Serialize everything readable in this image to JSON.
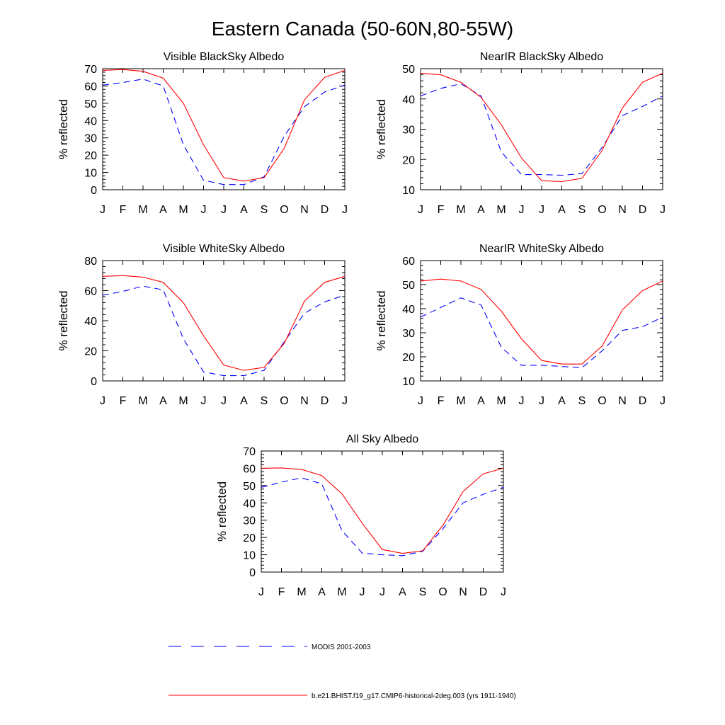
{
  "figure_title": "Eastern Canada (50-60N,80-55W)",
  "legend": {
    "placement": "bottom",
    "entries": [
      {
        "label": "MODIS 2001-2003",
        "color": "#0000ff",
        "style": "dashed"
      },
      {
        "label": "b.e21.BHIST.f19_g17.CMIP6-historical-2deg.003 (yrs 1911-1940)",
        "color": "#ff0000",
        "style": "solid"
      }
    ]
  },
  "chart_data": [
    {
      "type": "line",
      "title": "Visible BlackSky Albedo",
      "xlabel": "",
      "ylabel": "% reflected",
      "categories": [
        "J",
        "F",
        "M",
        "A",
        "M",
        "J",
        "J",
        "A",
        "S",
        "O",
        "N",
        "D",
        "J"
      ],
      "ylim": [
        0,
        70
      ],
      "yticks": [
        0,
        10,
        20,
        30,
        40,
        50,
        60,
        70
      ],
      "grid": false,
      "series": [
        {
          "name": "MODIS 2001-2003",
          "color": "#0000ff",
          "dash": true,
          "values": [
            60.5,
            62,
            64,
            60,
            26,
            5.5,
            3,
            3,
            7.5,
            31,
            48,
            56.5,
            60.5
          ]
        },
        {
          "name": "b.e21.BHIST.f19_g17.CMIP6-historical-2deg.003 (yrs 1911-1940)",
          "color": "#ff0000",
          "dash": false,
          "values": [
            69,
            69.5,
            68.5,
            64.5,
            50,
            26,
            7,
            5,
            7,
            24,
            52,
            65,
            69
          ]
        }
      ]
    },
    {
      "type": "line",
      "title": "NearIR BlackSky Albedo",
      "xlabel": "",
      "ylabel": "% reflected",
      "categories": [
        "J",
        "F",
        "M",
        "A",
        "M",
        "J",
        "J",
        "A",
        "S",
        "O",
        "N",
        "D",
        "J"
      ],
      "ylim": [
        10,
        50
      ],
      "yticks": [
        10,
        20,
        30,
        40,
        50
      ],
      "grid": false,
      "series": [
        {
          "name": "MODIS 2001-2003",
          "color": "#0000ff",
          "dash": true,
          "values": [
            41,
            43.5,
            45,
            41,
            22.5,
            15,
            15,
            14.8,
            15.3,
            24,
            34.5,
            37.5,
            41
          ]
        },
        {
          "name": "b.e21.BHIST.f19_g17.CMIP6-historical-2deg.003 (yrs 1911-1940)",
          "color": "#ff0000",
          "dash": false,
          "values": [
            48.5,
            48,
            45.5,
            40.5,
            31.5,
            20.5,
            13,
            12.7,
            13.8,
            23,
            37,
            45.5,
            48.5
          ]
        }
      ]
    },
    {
      "type": "line",
      "title": "Visible WhiteSky Albedo",
      "xlabel": "",
      "ylabel": "% reflected",
      "categories": [
        "J",
        "F",
        "M",
        "A",
        "M",
        "J",
        "J",
        "A",
        "S",
        "O",
        "N",
        "D",
        "J"
      ],
      "ylim": [
        0,
        80
      ],
      "yticks": [
        0,
        20,
        40,
        60,
        80
      ],
      "grid": false,
      "series": [
        {
          "name": "MODIS 2001-2003",
          "color": "#0000ff",
          "dash": true,
          "values": [
            57,
            59.5,
            63,
            60.5,
            28,
            6,
            3.5,
            3.5,
            7,
            26,
            45,
            52.5,
            57
          ]
        },
        {
          "name": "b.e21.BHIST.f19_g17.CMIP6-historical-2deg.003 (yrs 1911-1940)",
          "color": "#ff0000",
          "dash": false,
          "values": [
            69.5,
            70,
            69,
            65.5,
            52,
            30,
            10.5,
            7,
            9,
            25,
            53,
            65.5,
            69.5
          ]
        }
      ]
    },
    {
      "type": "line",
      "title": "NearIR WhiteSky Albedo",
      "xlabel": "",
      "ylabel": "% reflected",
      "categories": [
        "J",
        "F",
        "M",
        "A",
        "M",
        "J",
        "J",
        "A",
        "S",
        "O",
        "N",
        "D",
        "J"
      ],
      "ylim": [
        10,
        60
      ],
      "yticks": [
        10,
        20,
        30,
        40,
        50,
        60
      ],
      "grid": false,
      "series": [
        {
          "name": "MODIS 2001-2003",
          "color": "#0000ff",
          "dash": true,
          "values": [
            36.5,
            40.5,
            44.5,
            41.5,
            24,
            16.5,
            16.5,
            16,
            15.5,
            22.5,
            31,
            32.5,
            36.5
          ]
        },
        {
          "name": "b.e21.BHIST.f19_g17.CMIP6-historical-2deg.003 (yrs 1911-1940)",
          "color": "#ff0000",
          "dash": false,
          "values": [
            51.5,
            52.3,
            51.5,
            48,
            39,
            27.5,
            18.5,
            17,
            17,
            24.5,
            39.5,
            47.5,
            51.5
          ]
        }
      ]
    },
    {
      "type": "line",
      "title": "All Sky Albedo",
      "xlabel": "",
      "ylabel": "% reflected",
      "categories": [
        "J",
        "F",
        "M",
        "A",
        "M",
        "J",
        "J",
        "A",
        "S",
        "O",
        "N",
        "D",
        "J"
      ],
      "ylim": [
        0,
        70
      ],
      "yticks": [
        0,
        10,
        20,
        30,
        40,
        50,
        60,
        70
      ],
      "grid": false,
      "series": [
        {
          "name": "MODIS 2001-2003",
          "color": "#0000ff",
          "dash": true,
          "values": [
            49,
            52,
            54.5,
            51,
            24,
            11,
            10,
            9.5,
            12,
            25,
            40,
            45,
            49
          ]
        },
        {
          "name": "b.e21.BHIST.f19_g17.CMIP6-historical-2deg.003 (yrs 1911-1940)",
          "color": "#ff0000",
          "dash": false,
          "values": [
            60,
            60.2,
            59.3,
            55.8,
            45.2,
            28.3,
            13,
            10.8,
            12.3,
            27,
            46.5,
            56.8,
            60
          ]
        }
      ]
    }
  ]
}
